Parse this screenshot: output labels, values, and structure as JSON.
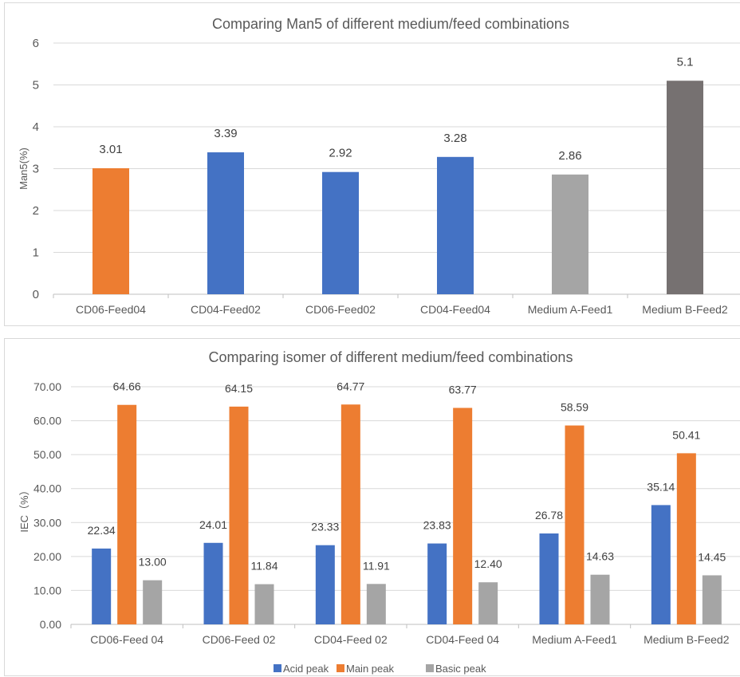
{
  "chart_data": [
    {
      "type": "bar",
      "title": "Comparing Man5 of different medium/feed combinations",
      "ylabel": "Man5(%)",
      "xlabel": "",
      "ylim": [
        0,
        6
      ],
      "yticks": [
        "0",
        "1",
        "2",
        "3",
        "4",
        "5",
        "6"
      ],
      "grid": true,
      "categories": [
        "CD06-Feed04",
        "CD04-Feed02",
        "CD06-Feed02",
        "CD04-Feed04",
        "Medium A-Feed1",
        "Medium B-Feed2"
      ],
      "values": [
        3.01,
        3.39,
        2.92,
        3.28,
        2.86,
        5.1
      ],
      "value_labels": [
        "3.01",
        "3.39",
        "2.92",
        "3.28",
        "2.86",
        "5.1"
      ],
      "colors": [
        "#ED7D31",
        "#4472C4",
        "#4472C4",
        "#4472C4",
        "#A5A5A5",
        "#767171"
      ]
    },
    {
      "type": "bar",
      "title": "Comparing isomer of different medium/feed combinations",
      "ylabel": "IEC（%）",
      "xlabel": "",
      "ylim": [
        0,
        70
      ],
      "yticks": [
        "0.00",
        "10.00",
        "20.00",
        "30.00",
        "40.00",
        "50.00",
        "60.00",
        "70.00"
      ],
      "grid": true,
      "legend_position": "bottom",
      "categories": [
        "CD06-Feed 04",
        "CD06-Feed 02",
        "CD04-Feed 02",
        "CD04-Feed 04",
        "Medium A-Feed1",
        "Medium B-Feed2"
      ],
      "series": [
        {
          "name": "Acid peak",
          "color": "#4472C4",
          "values": [
            22.34,
            24.01,
            23.33,
            23.83,
            26.78,
            35.14
          ],
          "labels": [
            "22.34",
            "24.01",
            "23.33",
            "23.83",
            "26.78",
            "35.14"
          ]
        },
        {
          "name": "Main peak",
          "color": "#ED7D31",
          "values": [
            64.66,
            64.15,
            64.77,
            63.77,
            58.59,
            50.41
          ],
          "labels": [
            "64.66",
            "64.15",
            "64.77",
            "63.77",
            "58.59",
            "50.41"
          ]
        },
        {
          "name": "Basic peak",
          "color": "#A5A5A5",
          "values": [
            13.0,
            11.84,
            11.91,
            12.4,
            14.63,
            14.45
          ],
          "labels": [
            "13.00",
            "11.84",
            "11.91",
            "12.40",
            "14.63",
            "14.45"
          ]
        }
      ]
    }
  ]
}
